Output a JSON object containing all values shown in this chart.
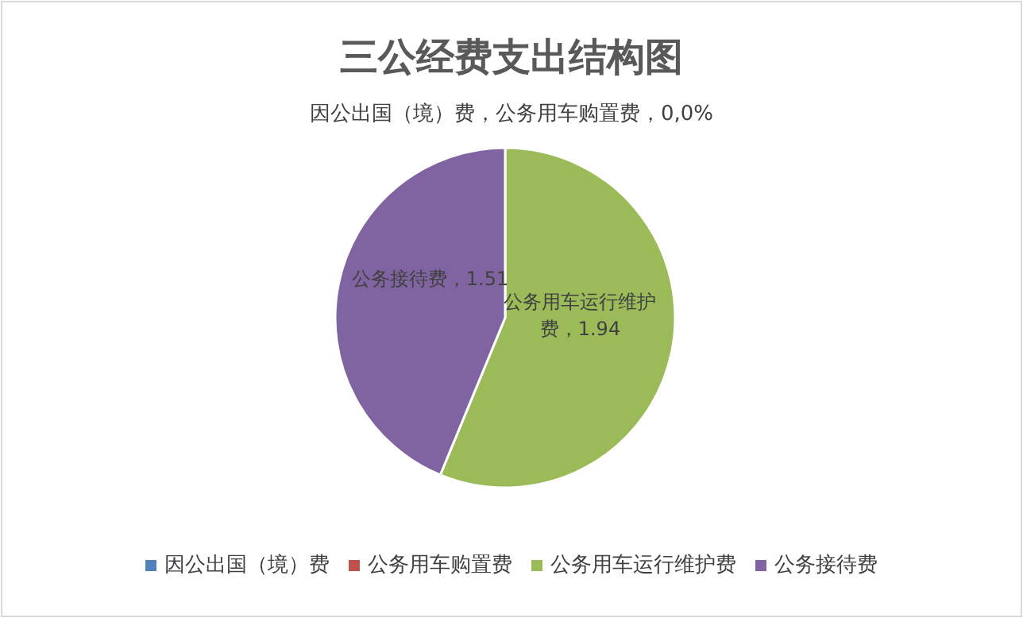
{
  "chart_data": {
    "type": "pie",
    "title": "三公经费支出结构图",
    "categories": [
      "因公出国（境）费",
      "公务用车购置费",
      "公务用车运行维护费",
      "公务接待费"
    ],
    "values": [
      0,
      0,
      1.94,
      1.51
    ],
    "colors": [
      "#4f81bd",
      "#c0504d",
      "#9bbb59",
      "#8064a2"
    ],
    "value_labels": [
      null,
      null,
      "公务用车运行维护费，1.94",
      "公务接待费，1.51"
    ],
    "annotations": [
      "因公出国（境）费，公务用车购置费，0,0%"
    ],
    "legend": "bottom"
  }
}
